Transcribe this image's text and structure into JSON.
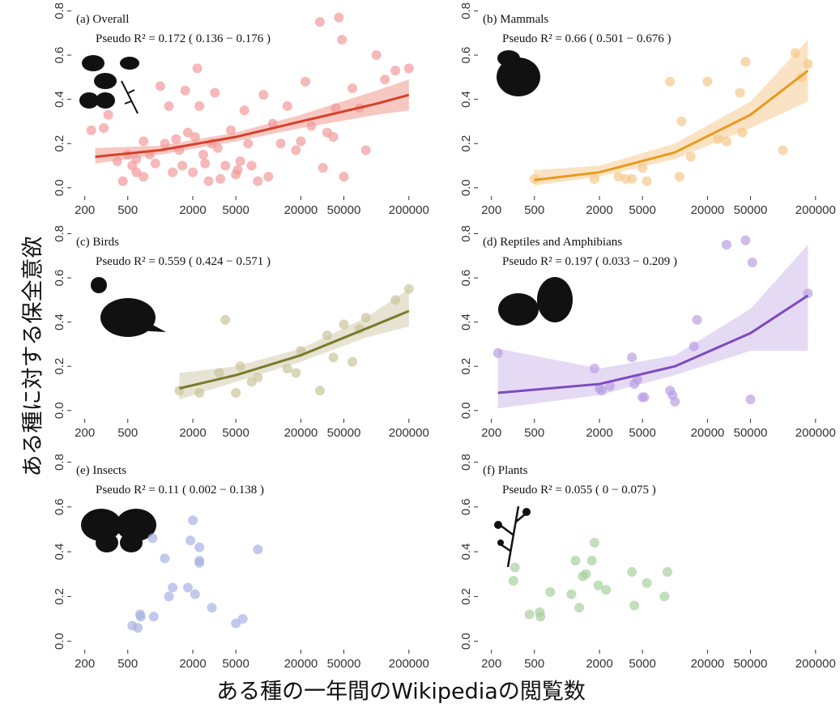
{
  "axis_labels": {
    "y": "ある種に対する保全意欲",
    "x": "ある種の一年間のWikipediaの閲覧数"
  },
  "chart_data": [
    {
      "type": "scatter",
      "title": "(a) Overall",
      "annotation": "Pseudo R² =  0.172  ( 0.136  −  0.176 )",
      "log_x": true,
      "xlim": [
        150,
        260000
      ],
      "ylim": [
        -0.03,
        0.82
      ],
      "xticks": [
        200,
        500,
        2000,
        5000,
        20000,
        50000,
        200000
      ],
      "yticks": [
        {
          "value": 0,
          "label": "0.0"
        },
        0.2,
        0.4,
        0.6,
        0.8
      ],
      "color": "#f29a9a",
      "line_color": "#d6402b",
      "band_color": "#f4b4ac",
      "x": [
        230,
        300,
        330,
        400,
        450,
        500,
        550,
        600,
        600,
        700,
        700,
        800,
        900,
        1000,
        1100,
        1200,
        1300,
        1400,
        1500,
        1600,
        1700,
        1800,
        2000,
        2100,
        2200,
        2300,
        2500,
        2600,
        2800,
        3000,
        3200,
        3400,
        3600,
        4000,
        4500,
        5000,
        5200,
        5500,
        6000,
        6500,
        7000,
        8000,
        9000,
        10000,
        11000,
        13000,
        15000,
        18000,
        20000,
        22000,
        25000,
        30000,
        32000,
        35000,
        40000,
        42000,
        45000,
        48000,
        50000,
        60000,
        70000,
        80000,
        100000,
        120000,
        150000,
        200000
      ],
      "values": [
        0.26,
        0.27,
        0.33,
        0.12,
        0.03,
        0.15,
        0.1,
        0.13,
        0.07,
        0.05,
        0.21,
        0.15,
        0.11,
        0.46,
        0.2,
        0.37,
        0.07,
        0.22,
        0.17,
        0.1,
        0.44,
        0.25,
        0.07,
        0.23,
        0.54,
        0.37,
        0.15,
        0.11,
        0.03,
        0.2,
        0.43,
        0.18,
        0.04,
        0.1,
        0.26,
        0.06,
        0.08,
        0.12,
        0.35,
        0.2,
        0.1,
        0.03,
        0.42,
        0.05,
        0.29,
        0.2,
        0.37,
        0.17,
        0.21,
        0.48,
        0.28,
        0.75,
        0.09,
        0.25,
        0.23,
        0.36,
        0.77,
        0.67,
        0.05,
        0.45,
        0.36,
        0.17,
        0.6,
        0.49,
        0.53,
        0.54
      ],
      "fit": {
        "x": [
          250,
          1000,
          5000,
          20000,
          100000,
          200000
        ],
        "values": [
          0.14,
          0.17,
          0.23,
          0.3,
          0.38,
          0.42
        ],
        "lower": [
          0.11,
          0.15,
          0.21,
          0.27,
          0.33,
          0.35
        ],
        "upper": [
          0.18,
          0.19,
          0.25,
          0.33,
          0.44,
          0.49
        ]
      }
    },
    {
      "type": "scatter",
      "title": "(b) Mammals",
      "annotation": "Pseudo R² =  0.66  ( 0.501  −  0.676 )",
      "log_x": true,
      "xlim": [
        150,
        260000
      ],
      "ylim": [
        -0.03,
        0.82
      ],
      "xticks": [
        200,
        500,
        2000,
        5000,
        20000,
        50000,
        200000
      ],
      "yticks": [
        {
          "value": 0,
          "label": "0.0"
        },
        0.2,
        0.4,
        0.6,
        0.8
      ],
      "color": "#f5c88a",
      "line_color": "#e89a1d",
      "band_color": "#f8d9b0",
      "x": [
        500,
        1800,
        3000,
        3500,
        4000,
        5000,
        5500,
        9000,
        11000,
        11500,
        14000,
        20000,
        25000,
        30000,
        40000,
        42000,
        45000,
        100000,
        130000,
        150000,
        170000
      ],
      "values": [
        0.04,
        0.04,
        0.05,
        0.04,
        0.04,
        0.09,
        0.03,
        0.48,
        0.05,
        0.3,
        0.14,
        0.48,
        0.22,
        0.21,
        0.43,
        0.25,
        0.57,
        0.17,
        0.61,
        0.5,
        0.56
      ],
      "fit": {
        "x": [
          500,
          2000,
          10000,
          50000,
          170000
        ],
        "values": [
          0.035,
          0.07,
          0.16,
          0.33,
          0.53
        ],
        "lower": [
          0.01,
          0.05,
          0.13,
          0.27,
          0.39
        ],
        "upper": [
          0.08,
          0.1,
          0.2,
          0.39,
          0.67
        ]
      }
    },
    {
      "type": "scatter",
      "title": "(c) Birds",
      "annotation": "Pseudo R² =  0.559  ( 0.424  −  0.571 )",
      "log_x": true,
      "xlim": [
        150,
        260000
      ],
      "ylim": [
        -0.03,
        0.82
      ],
      "xticks": [
        200,
        500,
        2000,
        5000,
        20000,
        50000,
        200000
      ],
      "yticks": [
        {
          "value": 0,
          "label": "0.0"
        },
        0.2,
        0.4,
        0.6,
        0.8
      ],
      "color": "#c9c59c",
      "line_color": "#7a7a2a",
      "band_color": "#dedac4",
      "x": [
        1500,
        2300,
        3500,
        4000,
        5000,
        5500,
        7000,
        8000,
        15000,
        18000,
        20000,
        30000,
        35000,
        40000,
        50000,
        60000,
        70000,
        80000,
        150000,
        200000
      ],
      "values": [
        0.09,
        0.08,
        0.17,
        0.41,
        0.08,
        0.2,
        0.13,
        0.15,
        0.19,
        0.17,
        0.27,
        0.09,
        0.34,
        0.24,
        0.39,
        0.22,
        0.37,
        0.42,
        0.5,
        0.55
      ],
      "fit": {
        "x": [
          1500,
          5000,
          20000,
          80000,
          200000
        ],
        "values": [
          0.1,
          0.16,
          0.25,
          0.37,
          0.45
        ],
        "lower": [
          0.05,
          0.13,
          0.22,
          0.33,
          0.38
        ],
        "upper": [
          0.17,
          0.2,
          0.28,
          0.42,
          0.55
        ]
      }
    },
    {
      "type": "scatter",
      "title": "(d) Reptiles and Amphibians",
      "annotation": "Pseudo R² =  0.197  ( 0.033  −  0.209 )",
      "log_x": true,
      "xlim": [
        150,
        260000
      ],
      "ylim": [
        -0.03,
        0.82
      ],
      "xticks": [
        200,
        500,
        2000,
        5000,
        20000,
        50000,
        200000
      ],
      "yticks": [
        {
          "value": 0,
          "label": "0.0"
        },
        0.2,
        0.4,
        0.6,
        0.8
      ],
      "color": "#b9a0e2",
      "line_color": "#7e4ac0",
      "band_color": "#dccdf0",
      "x": [
        230,
        1800,
        2000,
        2100,
        2500,
        4000,
        4200,
        4500,
        5000,
        5200,
        9000,
        9500,
        10000,
        15000,
        16000,
        30000,
        45000,
        50000,
        52000,
        170000
      ],
      "values": [
        0.26,
        0.19,
        0.1,
        0.09,
        0.11,
        0.24,
        0.12,
        0.14,
        0.06,
        0.06,
        0.09,
        0.07,
        0.04,
        0.29,
        0.41,
        0.75,
        0.77,
        0.05,
        0.67,
        0.53
      ],
      "fit": {
        "x": [
          230,
          2000,
          10000,
          50000,
          170000
        ],
        "values": [
          0.08,
          0.12,
          0.2,
          0.35,
          0.52
        ],
        "lower": [
          0.01,
          0.07,
          0.16,
          0.27,
          0.27
        ],
        "upper": [
          0.28,
          0.19,
          0.25,
          0.46,
          0.75
        ]
      }
    },
    {
      "type": "scatter",
      "title": "(e) Insects",
      "annotation": "Pseudo R² =  0.11  ( 0.002  −  0.138 )",
      "log_x": true,
      "xlim": [
        150,
        260000
      ],
      "ylim": [
        -0.03,
        0.82
      ],
      "xticks": [
        200,
        500,
        2000,
        5000,
        20000,
        50000,
        200000
      ],
      "yticks": [
        {
          "value": 0,
          "label": "0.0"
        },
        0.2,
        0.4,
        0.6,
        0.8
      ],
      "color": "#a8b2e2",
      "x": [
        550,
        620,
        650,
        660,
        850,
        870,
        1100,
        1200,
        1300,
        1800,
        1900,
        2000,
        2100,
        2300,
        2300,
        2300,
        3000,
        5000,
        5800,
        8000
      ],
      "values": [
        0.07,
        0.06,
        0.12,
        0.11,
        0.46,
        0.11,
        0.37,
        0.2,
        0.24,
        0.24,
        0.45,
        0.54,
        0.21,
        0.35,
        0.42,
        0.36,
        0.15,
        0.08,
        0.1,
        0.41
      ]
    },
    {
      "type": "scatter",
      "title": "(f) Plants",
      "annotation": "Pseudo R² =  0.055  ( 0  −  0.075 )",
      "log_x": true,
      "xlim": [
        150,
        260000
      ],
      "ylim": [
        -0.03,
        0.82
      ],
      "xticks": [
        200,
        500,
        2000,
        5000,
        20000,
        50000,
        200000
      ],
      "yticks": [
        {
          "value": 0,
          "label": "0.0"
        },
        0.2,
        0.4,
        0.6,
        0.8
      ],
      "color": "#a8d0a0",
      "x": [
        330,
        320,
        450,
        560,
        570,
        700,
        1100,
        1200,
        1300,
        1400,
        1500,
        1700,
        1800,
        1950,
        2300,
        4000,
        4200,
        5500,
        8000,
        8500
      ],
      "values": [
        0.33,
        0.27,
        0.12,
        0.13,
        0.11,
        0.22,
        0.21,
        0.36,
        0.15,
        0.29,
        0.3,
        0.36,
        0.44,
        0.25,
        0.23,
        0.31,
        0.16,
        0.26,
        0.2,
        0.31
      ]
    }
  ]
}
